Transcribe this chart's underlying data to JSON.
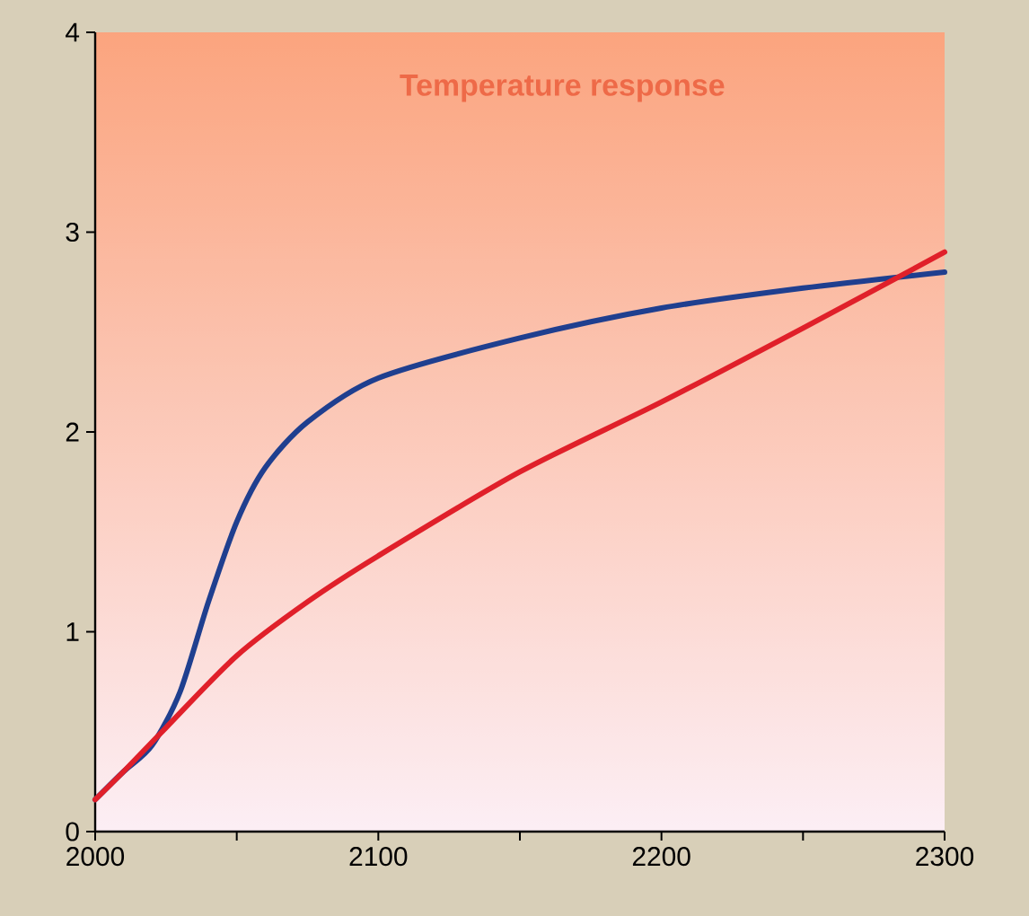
{
  "chart_data": {
    "type": "line",
    "title": "Temperature response",
    "xlim": [
      2000,
      2300
    ],
    "ylim": [
      0,
      4
    ],
    "xticks": [
      2000,
      2100,
      2200,
      2300
    ],
    "yticks": [
      0,
      1,
      2,
      3,
      4
    ],
    "line_style": "solid",
    "marker": "none",
    "series": [
      {
        "color": "#1f3f8f",
        "x": [
          2000,
          2010,
          2020,
          2030,
          2040,
          2050,
          2060,
          2075,
          2100,
          2150,
          2200,
          2250,
          2300
        ],
        "values": [
          0.16,
          0.3,
          0.43,
          0.7,
          1.15,
          1.55,
          1.82,
          2.05,
          2.27,
          2.47,
          2.62,
          2.72,
          2.8
        ]
      },
      {
        "color": "#e0202a",
        "x": [
          2000,
          2010,
          2025,
          2050,
          2075,
          2100,
          2150,
          2200,
          2250,
          2300
        ],
        "values": [
          0.16,
          0.3,
          0.52,
          0.88,
          1.15,
          1.38,
          1.8,
          2.15,
          2.52,
          2.9
        ]
      }
    ]
  }
}
